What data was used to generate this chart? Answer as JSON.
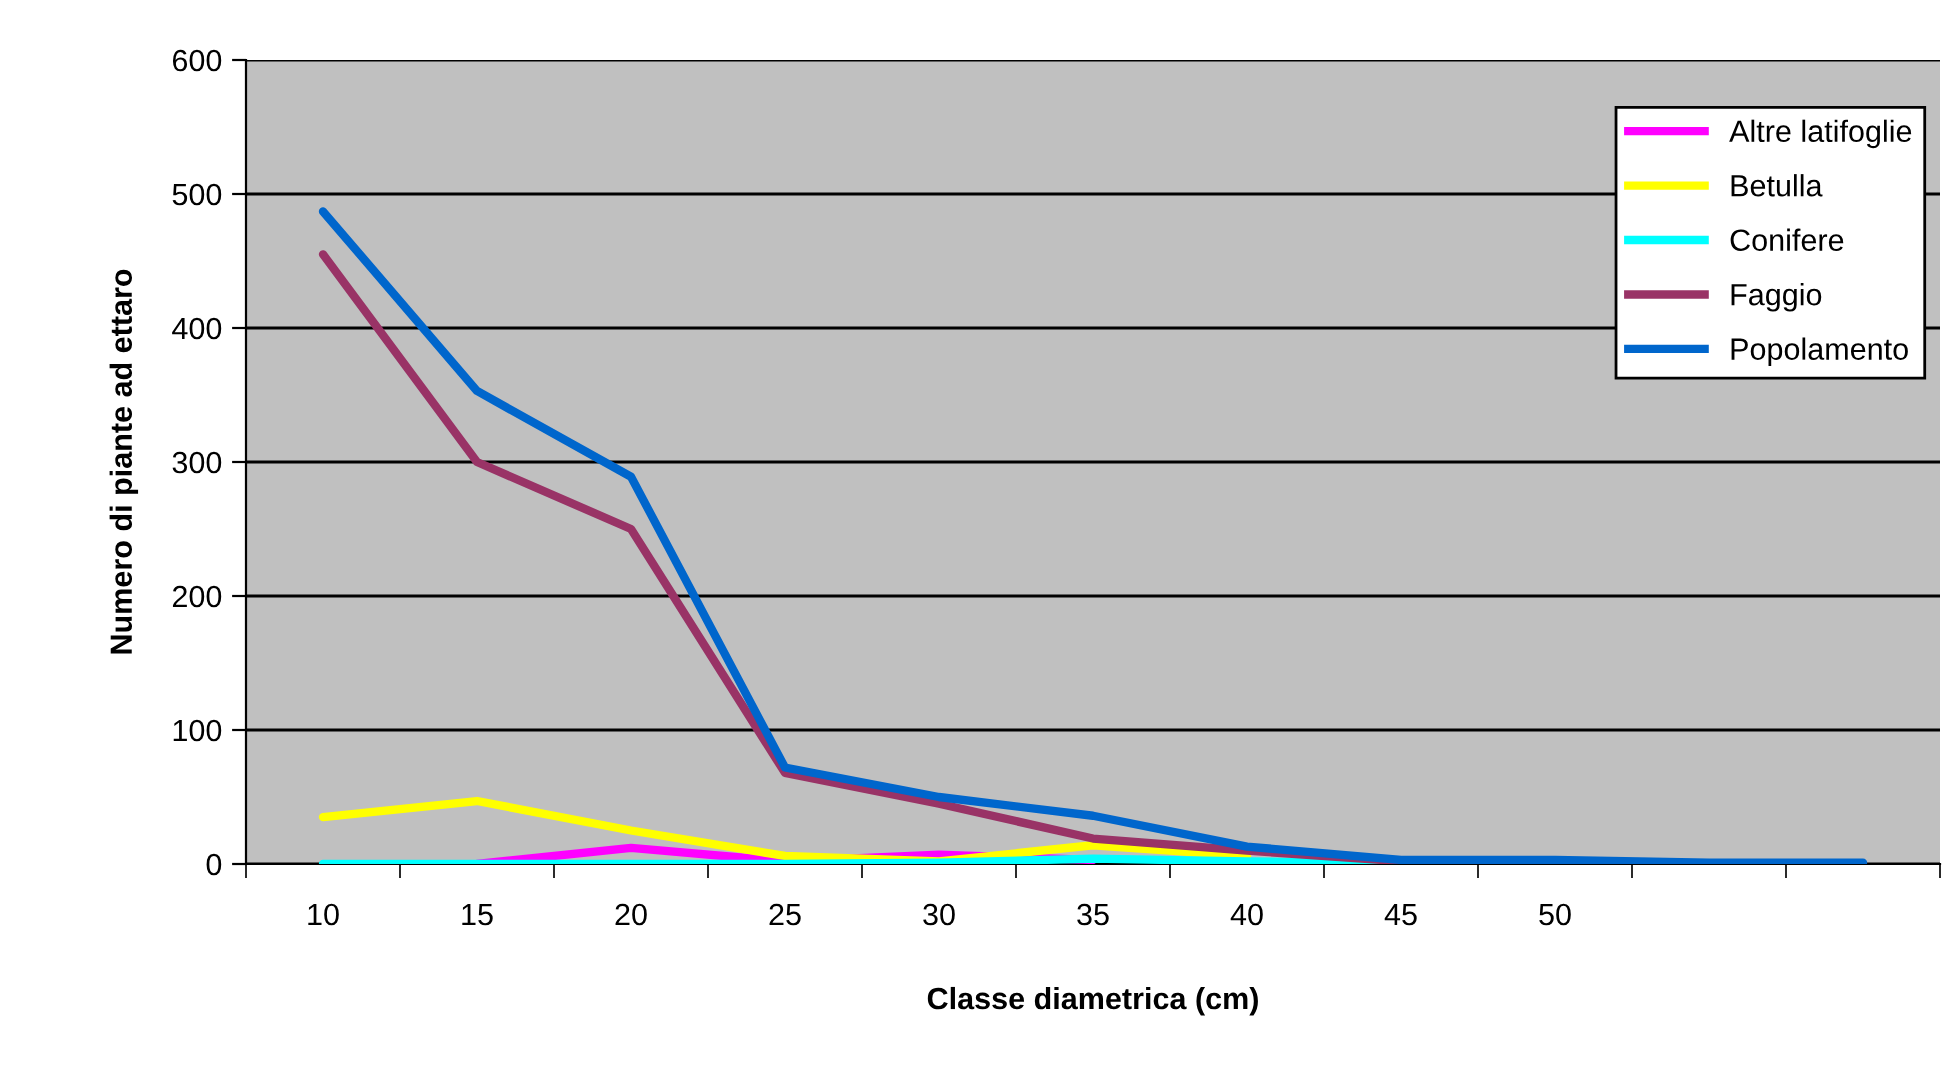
{
  "chart_data": {
    "type": "line",
    "xlabel": "Classe diametrica (cm)",
    "ylabel": "Numero di piante ad ettaro",
    "categories": [
      "10",
      "15",
      "20",
      "25",
      "30",
      "35",
      "40",
      "45",
      "50",
      null,
      null
    ],
    "series": [
      {
        "name": "Altre latifoglie",
        "color": "#ff00ff",
        "values": [
          null,
          0,
          12,
          2,
          7,
          3,
          null,
          null,
          null,
          null,
          null
        ]
      },
      {
        "name": "Betulla",
        "color": "#ffff00",
        "values": [
          35,
          47,
          25,
          6,
          2,
          14,
          6,
          null,
          null,
          null,
          null
        ]
      },
      {
        "name": "Conifere",
        "color": "#00ffff",
        "values": [
          0,
          0,
          0,
          0,
          1,
          4,
          2,
          0,
          0,
          null,
          null
        ]
      },
      {
        "name": "Faggio",
        "color": "#993366",
        "values": [
          455,
          300,
          250,
          68,
          45,
          19,
          10,
          2,
          null,
          null,
          null
        ]
      },
      {
        "name": "Popolamento",
        "color": "#0066cc",
        "values": [
          487,
          353,
          289,
          72,
          50,
          36,
          13,
          3,
          3,
          1,
          1
        ]
      }
    ],
    "ylim": [
      0,
      600
    ],
    "yticks": [
      0,
      100,
      200,
      300,
      400,
      500,
      600
    ],
    "grid": "y",
    "legend": "top right",
    "marker": "none",
    "line_style": "solid"
  }
}
